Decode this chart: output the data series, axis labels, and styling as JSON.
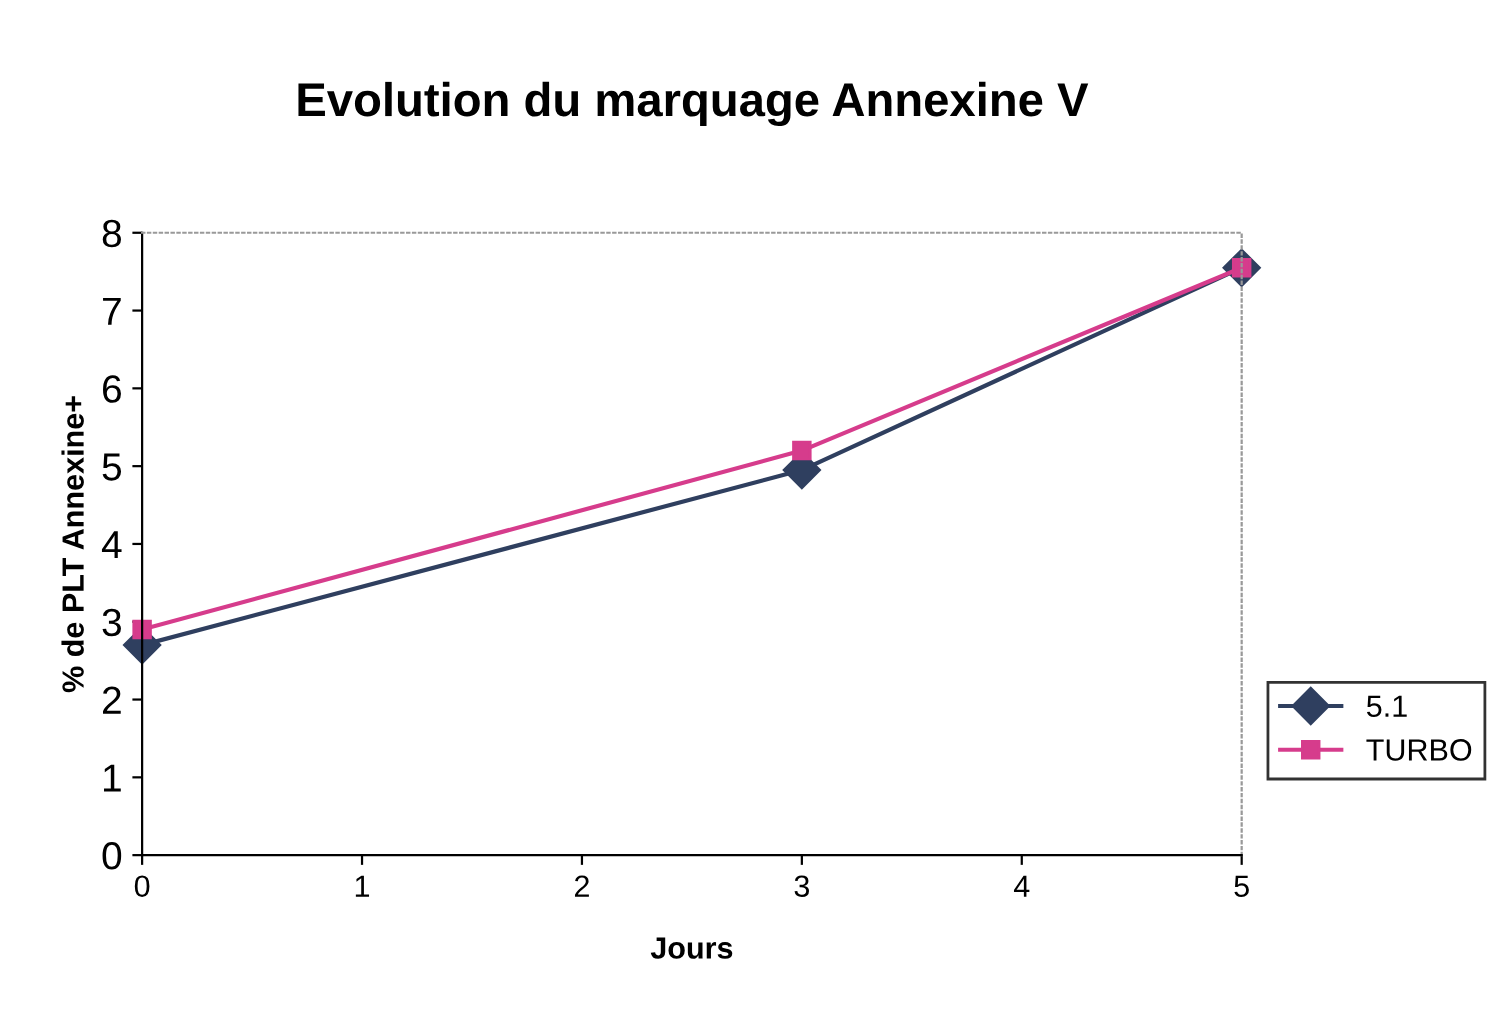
{
  "chart_data": {
    "type": "line",
    "title": "Evolution du marquage Annexine V",
    "xlabel": "Jours",
    "ylabel": "% de PLT Annexine+",
    "x": [
      0,
      3,
      5
    ],
    "series": [
      {
        "name": "5.1",
        "color": "#2f3f5f",
        "values": [
          2.7,
          4.95,
          7.55
        ],
        "marker": "diamond"
      },
      {
        "name": "TURBO",
        "color": "#d63c8c",
        "values": [
          2.9,
          5.2,
          7.55
        ],
        "marker": "square"
      }
    ],
    "xlim": [
      0,
      5
    ],
    "xticks": [
      0,
      1,
      2,
      3,
      4,
      5
    ],
    "ylim": [
      0,
      8
    ],
    "yticks": [
      0,
      1,
      2,
      3,
      4,
      5,
      6,
      7,
      8
    ],
    "grid": false,
    "legend": "right",
    "line_style": "solid"
  }
}
